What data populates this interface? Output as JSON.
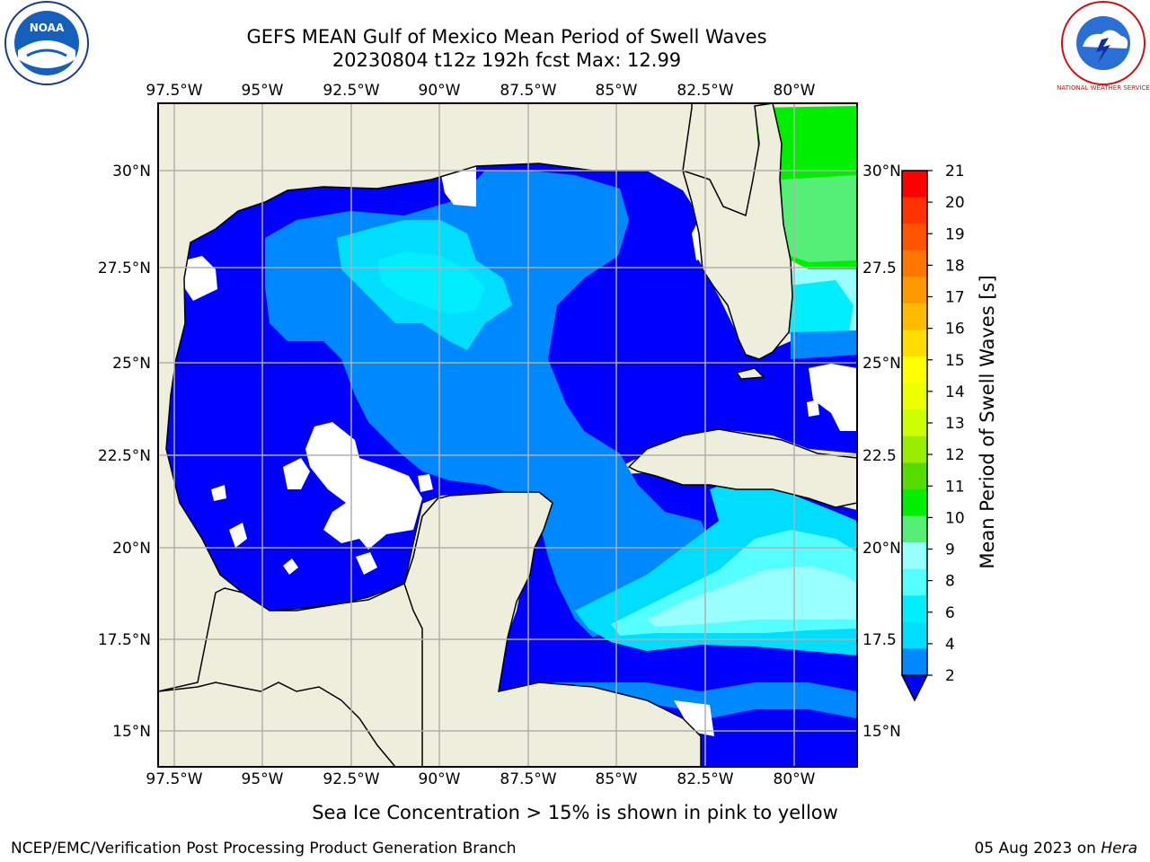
{
  "title": {
    "line1": "GEFS MEAN Gulf of Mexico Mean Period of Swell Waves",
    "line2": "20230804 t12z 192h fcst   Max: 12.99"
  },
  "logos": {
    "left_text": "NOAA",
    "right_text": "NATIONAL WEATHER SERVICE"
  },
  "map": {
    "lon_labels": [
      "97.5°W",
      "95°W",
      "92.5°W",
      "90°W",
      "87.5°W",
      "85°W",
      "82.5°W",
      "80°W"
    ],
    "lat_labels_left": [
      "30°N",
      "27.5°N",
      "25°N",
      "22.5°N",
      "20°N",
      "17.5°N",
      "15°N"
    ],
    "lat_labels_right": [
      "30°N",
      "27.5",
      "25°N",
      "22.5",
      "20°N",
      "17.5",
      "15°N"
    ],
    "colors": {
      "land": "#eeeedc",
      "no_data": "#ffffff",
      "grid": "#b0b0b0"
    }
  },
  "colorbar": {
    "label": "Mean Period of Swell Waves [s]",
    "ticks": [
      "21",
      "20",
      "19",
      "18",
      "17",
      "16",
      "15",
      "14",
      "13",
      "12",
      "11",
      "10",
      "9",
      "8",
      "6",
      "4",
      "2"
    ],
    "colors_top_to_bottom": [
      "#ff0000",
      "#ff3300",
      "#ff5500",
      "#ff7700",
      "#ff9900",
      "#ffbb00",
      "#ffdd00",
      "#ffff00",
      "#eeff00",
      "#ccff00",
      "#99ee00",
      "#55dd00",
      "#00ee00",
      "#55ee77",
      "#99ffff",
      "#55ffff",
      "#00eeff",
      "#00ddff",
      "#0088ff",
      "#0000ff"
    ]
  },
  "footer": {
    "note": "Sea Ice Concentration > 15% is shown in pink to yellow",
    "credit": "NCEP/EMC/Verification Post Processing Product Generation Branch",
    "date": "05 Aug 2023 on ",
    "machine": "Hera"
  }
}
